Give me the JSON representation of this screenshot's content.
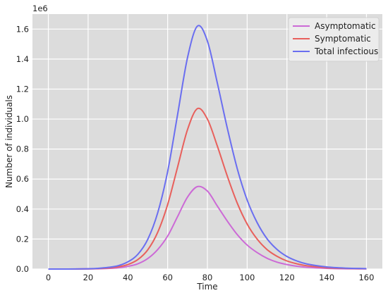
{
  "chart_data": {
    "type": "line",
    "xlabel": "Time",
    "ylabel": "Number of individuals",
    "y_scale_label": "1e6",
    "xlim": [
      -8,
      168
    ],
    "ylim": [
      0,
      1.7
    ],
    "x_ticks": [
      0,
      20,
      40,
      60,
      80,
      100,
      120,
      140,
      160
    ],
    "y_ticks": [
      0.0,
      0.2,
      0.4,
      0.6,
      0.8,
      1.0,
      1.2,
      1.4,
      1.6
    ],
    "y_tick_labels": [
      "0.0",
      "0.2",
      "0.4",
      "0.6",
      "0.8",
      "1.0",
      "1.2",
      "1.4",
      "1.6"
    ],
    "grid": true,
    "background": "#dcdcdc",
    "legend_position": "top-right",
    "x": [
      0,
      10,
      20,
      25,
      30,
      35,
      40,
      45,
      50,
      55,
      60,
      65,
      70,
      75,
      80,
      85,
      90,
      95,
      100,
      105,
      110,
      115,
      120,
      125,
      130,
      140,
      150,
      160
    ],
    "series": [
      {
        "name": "Asymptomatic",
        "color": "#cc6ad6",
        "values": [
          0.0,
          0.0,
          0.001,
          0.002,
          0.004,
          0.008,
          0.018,
          0.035,
          0.07,
          0.13,
          0.22,
          0.35,
          0.48,
          0.55,
          0.52,
          0.42,
          0.32,
          0.23,
          0.16,
          0.11,
          0.072,
          0.046,
          0.03,
          0.019,
          0.012,
          0.005,
          0.002,
          0.001
        ]
      },
      {
        "name": "Symptomatic",
        "color": "#e8605c",
        "values": [
          0.0,
          0.0,
          0.001,
          0.003,
          0.007,
          0.014,
          0.03,
          0.063,
          0.128,
          0.245,
          0.43,
          0.68,
          0.93,
          1.07,
          1.0,
          0.82,
          0.62,
          0.44,
          0.3,
          0.2,
          0.13,
          0.085,
          0.054,
          0.035,
          0.022,
          0.009,
          0.004,
          0.002
        ]
      },
      {
        "name": "Total infectious",
        "color": "#6a6ef0",
        "values": [
          0.0,
          0.0,
          0.002,
          0.005,
          0.011,
          0.022,
          0.048,
          0.098,
          0.198,
          0.375,
          0.65,
          1.03,
          1.41,
          1.62,
          1.52,
          1.24,
          0.94,
          0.67,
          0.46,
          0.31,
          0.202,
          0.131,
          0.084,
          0.054,
          0.034,
          0.014,
          0.006,
          0.003
        ]
      }
    ]
  }
}
